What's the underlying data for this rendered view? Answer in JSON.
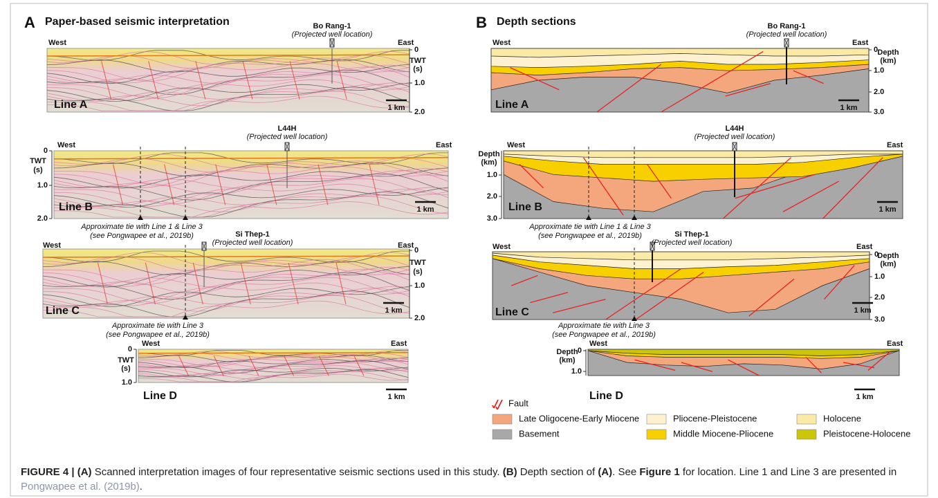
{
  "panels": [
    {
      "letter": "A",
      "title": "Paper-based seismic interpretation",
      "sections": [
        {
          "line": "Line A",
          "west": "West",
          "east": "East",
          "well": {
            "name": "Bo Rang-1",
            "note": "(Projected well location)"
          },
          "axis": {
            "label": [
              "TWT",
              "(s)"
            ],
            "ticks": [
              "0",
              "1.0",
              "2.0"
            ]
          },
          "scale": "1 km"
        },
        {
          "line": "Line B",
          "west": "West",
          "east": "East",
          "well": {
            "name": "L44H",
            "note": "(Projected well location)"
          },
          "axis": {
            "label": [
              "TWT",
              "(s)"
            ],
            "ticks": [
              "0",
              "1.0",
              "2.0"
            ]
          },
          "scale": "1 km",
          "tie": [
            "Approximate tie with Line 1 & Line 3",
            "(see Pongwapee et al., 2019b)"
          ]
        },
        {
          "line": "Line C",
          "west": "West",
          "east": "East",
          "well": {
            "name": "Si Thep-1",
            "note": "(Projected well location)"
          },
          "axis": {
            "label": [
              "TWT",
              "(s)"
            ],
            "ticks": [
              "0",
              "1.0",
              "2.0"
            ]
          },
          "scale": "1 km",
          "tie": [
            "Approximate tie with Line 3",
            "(see Pongwapee et al., 2019b)"
          ]
        },
        {
          "line": "Line D",
          "west": "West",
          "east": "East",
          "axis": {
            "label": [
              "TWT",
              "(s)"
            ],
            "ticks": [
              "0",
              "1.0"
            ]
          },
          "scale": "1 km"
        }
      ]
    },
    {
      "letter": "B",
      "title": "Depth sections",
      "sections": [
        {
          "line": "Line A",
          "west": "West",
          "east": "East",
          "well": {
            "name": "Bo Rang-1",
            "note": "(Projected well location)"
          },
          "axis": {
            "label": [
              "Depth",
              "(km)"
            ],
            "ticks": [
              "0",
              "1.0",
              "2.0",
              "3.0"
            ]
          },
          "scale": "1 km"
        },
        {
          "line": "Line B",
          "west": "West",
          "east": "East",
          "well": {
            "name": "L44H",
            "note": "(Projected well location)"
          },
          "axis": {
            "label": [
              "Depth",
              "(km)"
            ],
            "ticks": [
              "1.0",
              "2.0",
              "3.0"
            ]
          },
          "scale": "1 km",
          "tie": [
            "Approximate tie with Line 1 & Line 3",
            "(see Pongwapee et al., 2019b)"
          ]
        },
        {
          "line": "Line C",
          "west": "West",
          "east": "East",
          "well": {
            "name": "Si Thep-1",
            "note": "(Projected well location)"
          },
          "axis": {
            "label": [
              "Depth",
              "(km)"
            ],
            "ticks": [
              "0",
              "1.0",
              "2.0",
              "3.0"
            ]
          },
          "scale": "1 km",
          "tie": [
            "Approximate tie with Line 3",
            "(see Pongwapee et al., 2019b)"
          ]
        },
        {
          "line": "Line D",
          "west": "West",
          "east": "East",
          "axis": {
            "label": [
              "Depth",
              "(km)"
            ],
            "ticks": [
              "0",
              "1.0"
            ]
          },
          "scale": "1 km"
        }
      ]
    }
  ],
  "legend": {
    "fault": {
      "name": "Fault",
      "color": "#e8231f"
    },
    "items": [
      {
        "name": "Late Oligocene-Early Miocene",
        "color": "#f4a67c"
      },
      {
        "name": "Pliocene-Pleistocene",
        "color": "#fdf1cf"
      },
      {
        "name": "Holocene",
        "color": "#fbe9a6"
      },
      {
        "name": "Basement",
        "color": "#a8a8a8"
      },
      {
        "name": "Middle Miocene-Pliocene",
        "color": "#f8d000"
      },
      {
        "name": "Pleistocene-Holocene",
        "color": "#cbc60a"
      }
    ]
  },
  "caption": {
    "runs": [
      {
        "text": "FIGURE 4 | ",
        "style": "bold"
      },
      {
        "text": "(A)",
        "style": "bold"
      },
      {
        "text": " Scanned interpretation images of four representative seismic sections used in this study. ",
        "style": "plain"
      },
      {
        "text": "(B)",
        "style": "bold"
      },
      {
        "text": " Depth section of ",
        "style": "plain"
      },
      {
        "text": "(A)",
        "style": "bold"
      },
      {
        "text": ". See ",
        "style": "plain"
      },
      {
        "text": "Figure 1",
        "style": "bold"
      },
      {
        "text": " for location. Line 1 and Line 3 are presented in ",
        "style": "plain"
      },
      {
        "text": "Pongwapee et al. (2019b)",
        "style": "link"
      },
      {
        "text": ".",
        "style": "plain"
      }
    ]
  }
}
